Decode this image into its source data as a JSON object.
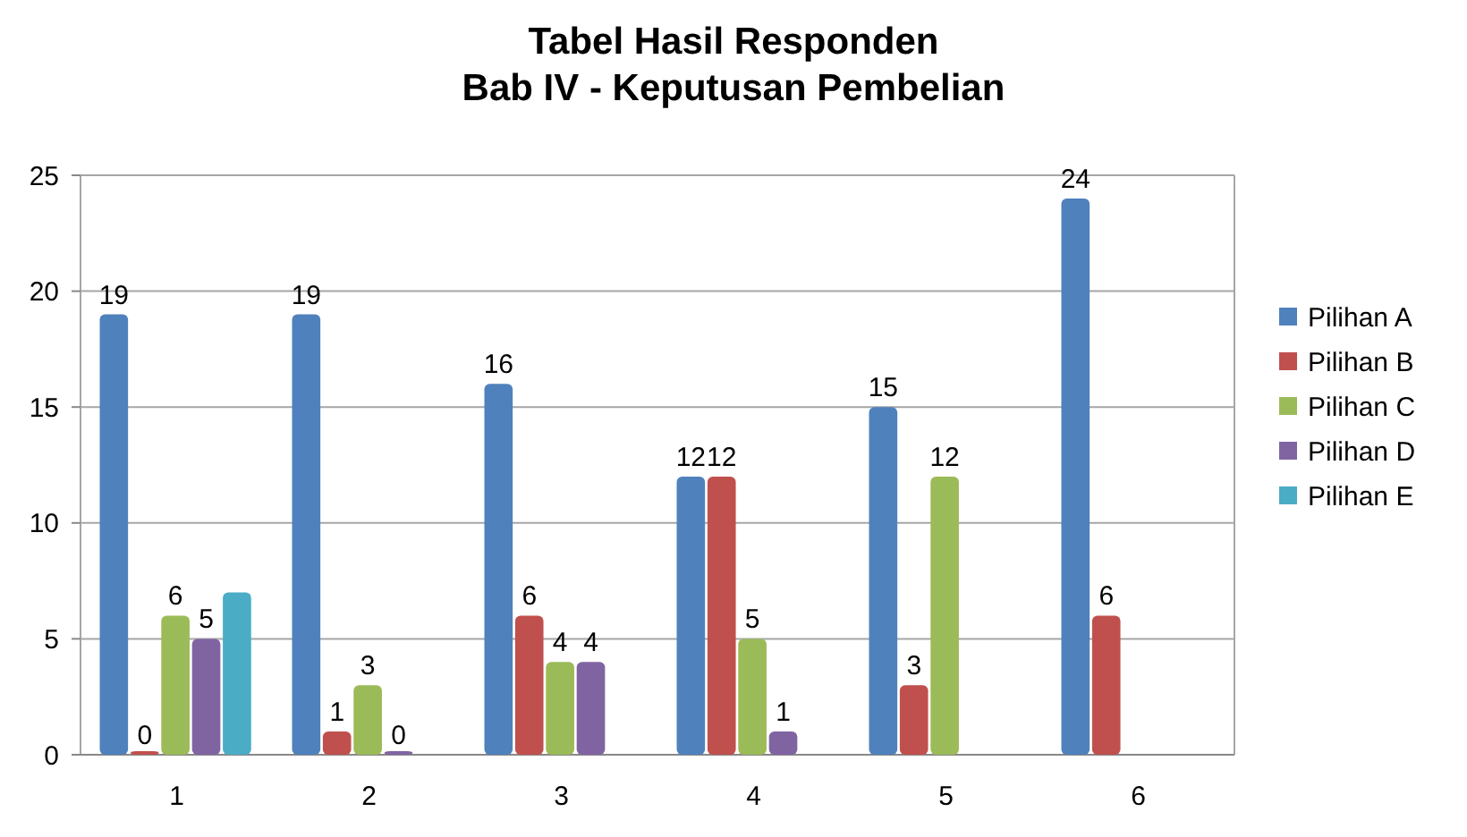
{
  "chart_data": {
    "type": "bar",
    "title": "Tabel Hasil Responden\nBab IV - Keputusan Pembelian",
    "categories": [
      "1",
      "2",
      "3",
      "4",
      "5",
      "6"
    ],
    "series": [
      {
        "name": "Pilihan A",
        "color": "#4f81bd",
        "values": [
          19,
          19,
          16,
          12,
          15,
          24
        ],
        "value_labels": [
          "19",
          "19",
          "16",
          "12",
          "15",
          "24"
        ]
      },
      {
        "name": "Pilihan B",
        "color": "#c0504d",
        "values": [
          0,
          1,
          6,
          12,
          3,
          6
        ],
        "value_labels": [
          "0",
          "1",
          "6",
          "12",
          "3",
          "6"
        ]
      },
      {
        "name": "Pilihan C",
        "color": "#9bbb59",
        "values": [
          6,
          3,
          4,
          5,
          12,
          null
        ],
        "value_labels": [
          "6",
          "3",
          "4",
          "5",
          "12",
          null
        ]
      },
      {
        "name": "Pilihan D",
        "color": "#8064a2",
        "values": [
          5,
          0,
          4,
          1,
          null,
          null
        ],
        "value_labels": [
          "5",
          "0",
          "4",
          "1",
          null,
          null
        ]
      },
      {
        "name": "Pilihan E",
        "color": "#4bacc6",
        "values": [
          7,
          null,
          null,
          null,
          null,
          null
        ],
        "value_labels": [
          null,
          null,
          null,
          null,
          null,
          null
        ]
      }
    ],
    "ylim": [
      0,
      25
    ],
    "yticks": [
      0,
      5,
      10,
      15,
      20,
      25
    ],
    "grid": "y",
    "legend": "right"
  }
}
